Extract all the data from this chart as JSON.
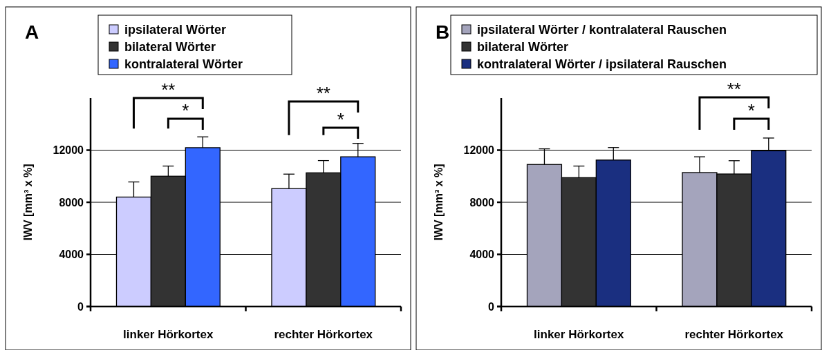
{
  "chart_data": [
    {
      "type": "bar",
      "title": "A",
      "ylabel": "IWV [mm³ x %]",
      "categories": [
        "linker Hörkortex",
        "rechter Hörkortex"
      ],
      "series": [
        {
          "name": "ipsilateral Wörter",
          "color": "#ccccff",
          "values": [
            8400,
            9050
          ],
          "errors": [
            [
              8400,
              9560
            ],
            [
              9050,
              10160
            ]
          ]
        },
        {
          "name": "bilateral Wörter",
          "color": "#333333",
          "values": [
            10000,
            10260
          ],
          "errors": [
            [
              10000,
              10780
            ],
            [
              10260,
              11200
            ]
          ]
        },
        {
          "name": "kontralateral Wörter",
          "color": "#3366ff",
          "values": [
            12190,
            11490
          ],
          "errors": [
            [
              12190,
              13020
            ],
            [
              11490,
              12520
            ]
          ]
        }
      ],
      "ylim": [
        0,
        16000
      ],
      "yticks": [
        0,
        4000,
        8000,
        12000
      ],
      "grid": "y",
      "legend": "top",
      "annotations": [
        "**",
        "*",
        "**",
        "*"
      ]
    },
    {
      "type": "bar",
      "title": "B",
      "ylabel": "IWV [mm³ x %]",
      "categories": [
        "linker Hörkortex",
        "rechter Hörkortex"
      ],
      "series": [
        {
          "name": "ipsilateral Wörter / kontralateral Rauschen",
          "color": "#a4a4bc",
          "values": [
            10900,
            10280
          ],
          "errors": [
            [
              10900,
              12100
            ],
            [
              10280,
              11490
            ]
          ]
        },
        {
          "name": "bilateral Wörter",
          "color": "#333333",
          "values": [
            9890,
            10170
          ],
          "errors": [
            [
              9890,
              10780
            ],
            [
              10170,
              11190
            ]
          ]
        },
        {
          "name": "kontralateral Wörter / ipsilateral Rauschen",
          "color": "#1a2f80",
          "values": [
            11240,
            11950
          ],
          "errors": [
            [
              11240,
              12200
            ],
            [
              11950,
              12930
            ]
          ]
        }
      ],
      "ylim": [
        0,
        16000
      ],
      "yticks": [
        0,
        4000,
        8000,
        12000
      ],
      "grid": "y",
      "legend": "top",
      "annotations": [
        "**",
        "*"
      ]
    }
  ]
}
